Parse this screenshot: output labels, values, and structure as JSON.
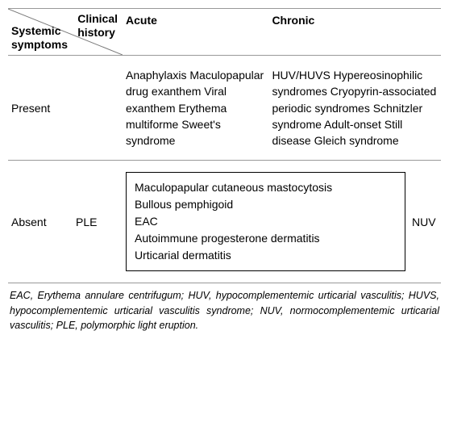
{
  "header": {
    "diag_top": "Clinical history",
    "diag_bottom": "Systemic symptoms",
    "acute": "Acute",
    "chronic": "Chronic"
  },
  "rows": {
    "present": {
      "label": "Present",
      "acute": "Anaphylaxis Maculopapular drug exanthem Viral exanthem Erythema multiforme Sweet's syndrome",
      "chronic": "HUV/HUVS Hypereosinophilic syndromes Cryopyrin-associated periodic syndromes Schnitzler syndrome Adult-onset Still disease Gleich syndrome"
    },
    "absent": {
      "label": "Absent",
      "left": "PLE",
      "box": "Maculopapular cutaneous mastocytosis\nBullous pemphigoid\nEAC\nAutoimmune progesterone dermatitis\nUrticarial dermatitis",
      "right": "NUV"
    }
  },
  "footnote": "EAC, Erythema annulare centrifugum; HUV, hypocomplementemic urticarial vasculitis; HUVS, hypocomplementemic urticarial vasculitis syndrome; NUV, normocomplementemic urticarial vasculitis; PLE, polymorphic light eruption."
}
